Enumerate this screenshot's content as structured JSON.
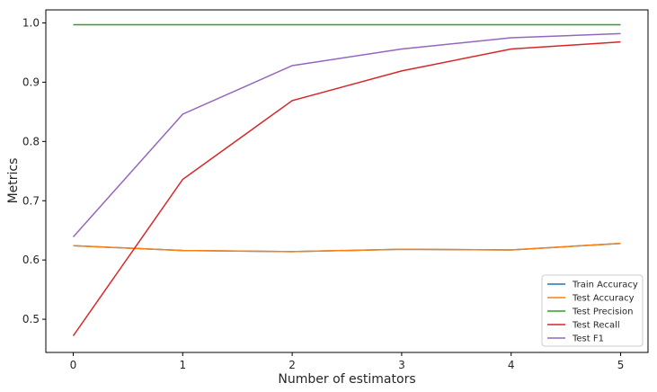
{
  "chart_data": {
    "type": "line",
    "title": "",
    "xlabel": "Number of estimators",
    "ylabel": "Metrics",
    "x": [
      0,
      1,
      2,
      3,
      4,
      5
    ],
    "xlim": [
      -0.25,
      5.25
    ],
    "ylim": [
      0.444,
      1.022
    ],
    "xticks": [
      0,
      1,
      2,
      3,
      4,
      5
    ],
    "yticks": [
      0.5,
      0.6,
      0.7,
      0.8,
      0.9,
      1.0
    ],
    "xtick_labels": [
      "0",
      "1",
      "2",
      "3",
      "4",
      "5"
    ],
    "ytick_labels": [
      "0.5",
      "0.6",
      "0.7",
      "0.8",
      "0.9",
      "1.0"
    ],
    "grid": false,
    "legend_position": "lower-right",
    "series": [
      {
        "name": "Train Accuracy",
        "color": "#1f77b4",
        "values": [
          0.624,
          0.616,
          0.614,
          0.618,
          0.617,
          0.628
        ]
      },
      {
        "name": "Test Accuracy",
        "color": "#ff7f0e",
        "values": [
          0.624,
          0.616,
          0.614,
          0.618,
          0.617,
          0.628
        ]
      },
      {
        "name": "Test Precision",
        "color": "#2ca02c",
        "values": [
          0.997,
          0.997,
          0.997,
          0.997,
          0.997,
          0.997
        ]
      },
      {
        "name": "Test Recall",
        "color": "#d62728",
        "values": [
          0.472,
          0.736,
          0.869,
          0.919,
          0.956,
          0.968
        ]
      },
      {
        "name": "Test F1",
        "color": "#9467bd",
        "values": [
          0.639,
          0.846,
          0.928,
          0.956,
          0.975,
          0.982
        ]
      }
    ]
  }
}
